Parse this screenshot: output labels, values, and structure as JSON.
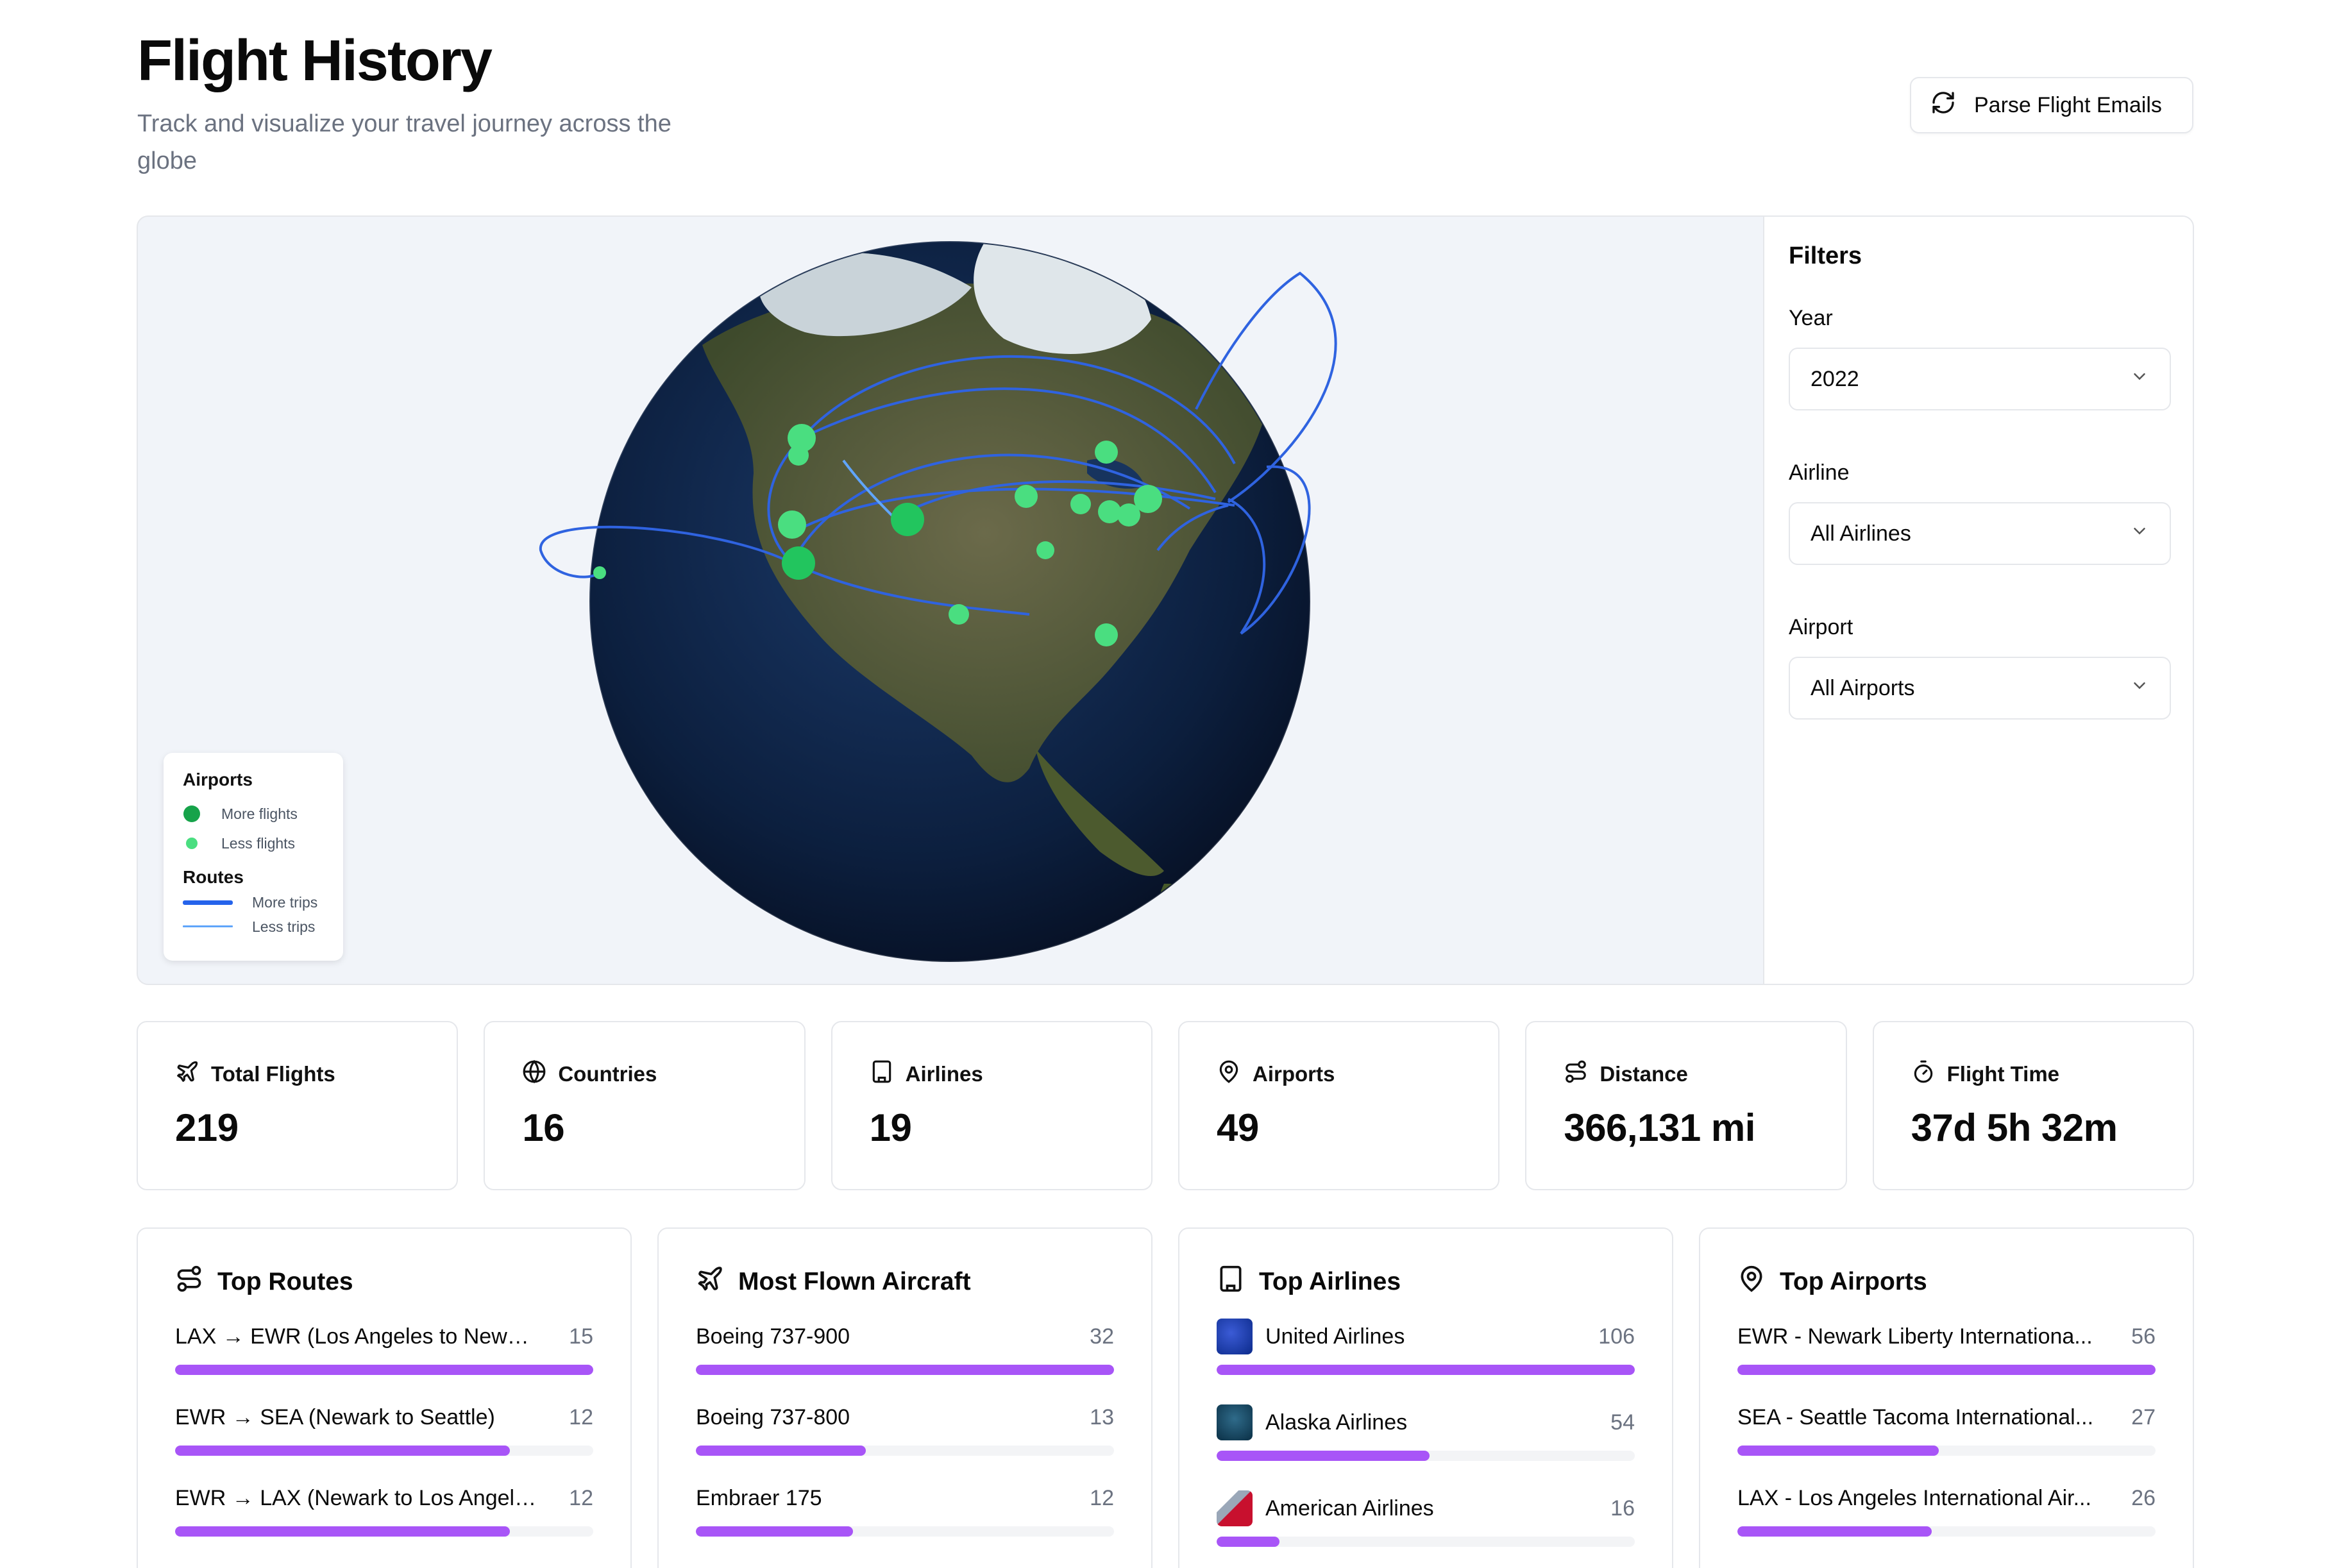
{
  "header": {
    "title": "Flight History",
    "subtitle": "Track and visualize your travel journey across the globe",
    "parse_button": "Parse Flight Emails"
  },
  "legend": {
    "airports_heading": "Airports",
    "more_flights": "More flights",
    "less_flights": "Less flights",
    "routes_heading": "Routes",
    "more_trips": "More trips",
    "less_trips": "Less trips"
  },
  "filters": {
    "title": "Filters",
    "year_label": "Year",
    "year_value": "2022",
    "airline_label": "Airline",
    "airline_value": "All Airlines",
    "airport_label": "Airport",
    "airport_value": "All Airports"
  },
  "stats": [
    {
      "label": "Total Flights",
      "value": "219",
      "icon": "plane-icon"
    },
    {
      "label": "Countries",
      "value": "16",
      "icon": "globe-icon"
    },
    {
      "label": "Airlines",
      "value": "19",
      "icon": "building-icon"
    },
    {
      "label": "Airports",
      "value": "49",
      "icon": "map-pin-icon"
    },
    {
      "label": "Distance",
      "value": "366,131 mi",
      "icon": "route-icon"
    },
    {
      "label": "Flight Time",
      "value": "37d 5h 32m",
      "icon": "timer-icon"
    }
  ],
  "top_routes": {
    "title": "Top Routes",
    "items": [
      {
        "name": "LAX → EWR (Los Angeles to Newark)",
        "count": "15",
        "fraction": 1.0
      },
      {
        "name": "EWR → SEA (Newark to Seattle)",
        "count": "12",
        "fraction": 0.8
      },
      {
        "name": "EWR → LAX (Newark to Los Angeles)",
        "count": "12",
        "fraction": 0.8
      }
    ]
  },
  "top_aircraft": {
    "title": "Most Flown Aircraft",
    "items": [
      {
        "name": "Boeing 737-900",
        "count": "32",
        "fraction": 1.0
      },
      {
        "name": "Boeing 737-800",
        "count": "13",
        "fraction": 0.406
      },
      {
        "name": "Embraer 175",
        "count": "12",
        "fraction": 0.375
      }
    ]
  },
  "top_airlines": {
    "title": "Top Airlines",
    "items": [
      {
        "name": "United Airlines",
        "count": "106",
        "fraction": 1.0,
        "logo_color": "#1d3aa8"
      },
      {
        "name": "Alaska Airlines",
        "count": "54",
        "fraction": 0.509,
        "logo_color": "#0f4c6e"
      },
      {
        "name": "American Airlines",
        "count": "16",
        "fraction": 0.151,
        "logo_color": "#c8102e"
      }
    ]
  },
  "top_airports": {
    "title": "Top Airports",
    "items": [
      {
        "name": "EWR - Newark Liberty Internationa...",
        "count": "56",
        "fraction": 1.0
      },
      {
        "name": "SEA - Seattle Tacoma International...",
        "count": "27",
        "fraction": 0.482
      },
      {
        "name": "LAX - Los Angeles International Air...",
        "count": "26",
        "fraction": 0.464
      }
    ]
  },
  "colors": {
    "accent_bar": "#a855f7",
    "airport_more": "#16a34a",
    "airport_less": "#4ade80",
    "route_more": "#2563eb",
    "route_less": "#60a5fa"
  }
}
